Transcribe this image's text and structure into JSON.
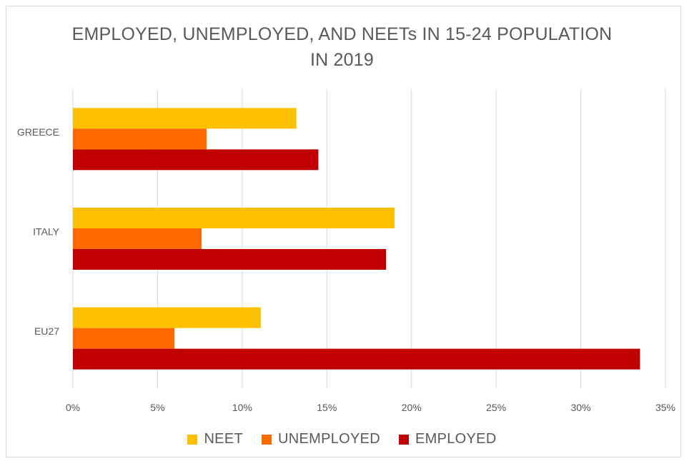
{
  "chart_data": {
    "type": "bar",
    "orientation": "horizontal",
    "title": "EMPLOYED, UNEMPLOYED, AND NEETs IN 15-24 POPULATION IN 2019",
    "title_lines": [
      "EMPLOYED, UNEMPLOYED, AND NEETs IN 15-24 POPULATION",
      "IN 2019"
    ],
    "categories": [
      "GREECE",
      "ITALY",
      "EU27"
    ],
    "series": [
      {
        "name": "NEET",
        "color": "#ffc000",
        "values": [
          13.2,
          19.0,
          11.1
        ]
      },
      {
        "name": "UNEMPLOYED",
        "color": "#ff6a00",
        "values": [
          7.9,
          7.6,
          6.0
        ]
      },
      {
        "name": "EMPLOYED",
        "color": "#c00000",
        "values": [
          14.5,
          18.5,
          33.5
        ]
      }
    ],
    "x_ticks": [
      "0%",
      "5%",
      "10%",
      "15%",
      "20%",
      "25%",
      "30%",
      "35%"
    ],
    "xlim": [
      0,
      35
    ],
    "grid": "vertical",
    "legend_position": "bottom"
  }
}
